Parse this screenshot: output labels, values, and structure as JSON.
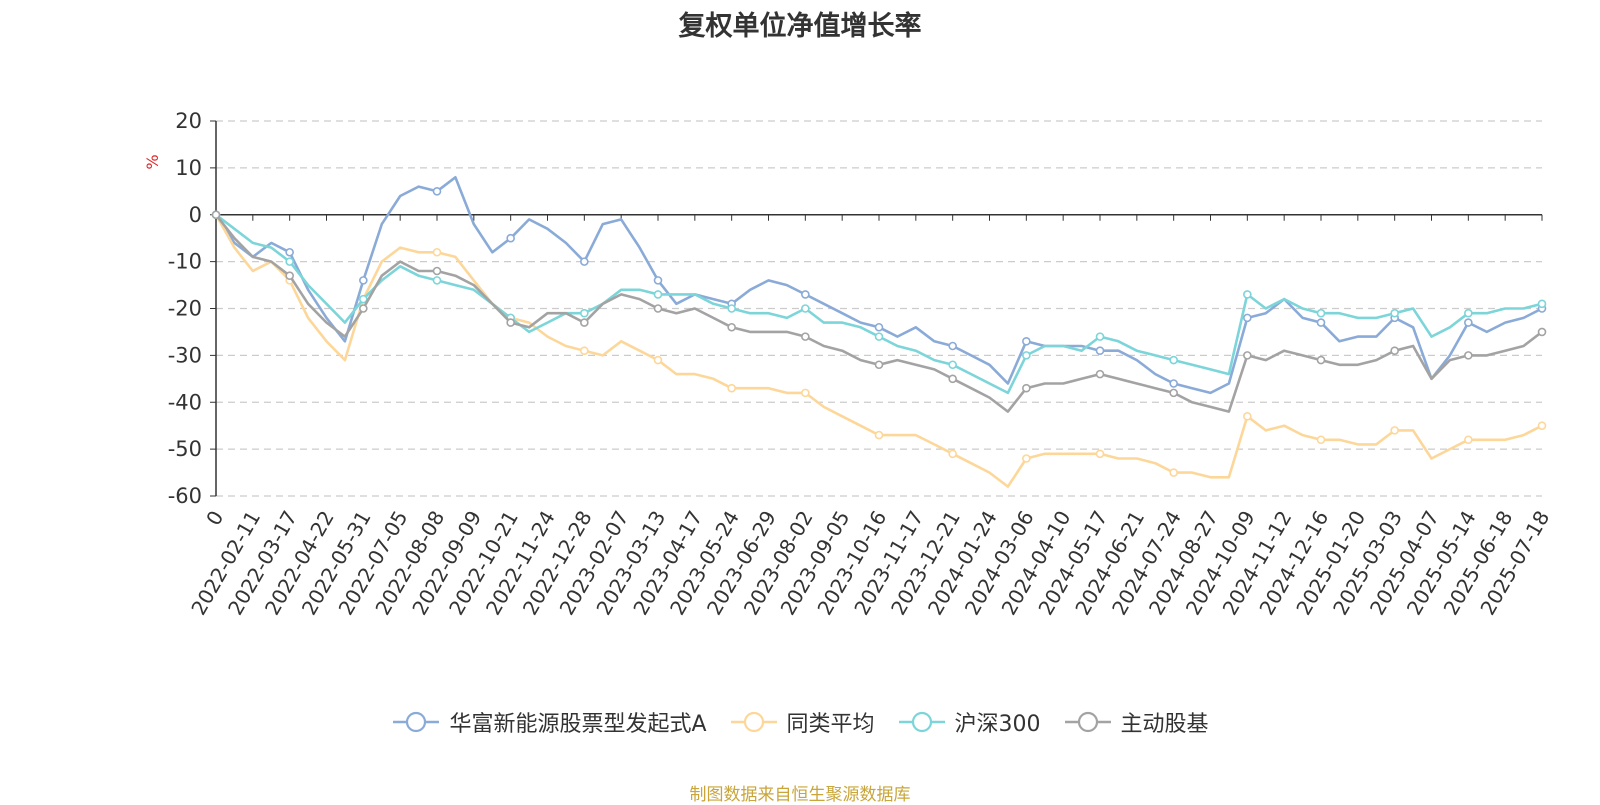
{
  "chart_data": {
    "type": "line",
    "title": "复权单位净值增长率",
    "ylabel": "%",
    "ylim": [
      -60,
      20
    ],
    "yticks": [
      20,
      10,
      0,
      -10,
      -20,
      -30,
      -40,
      -50,
      -60
    ],
    "grid": true,
    "legend_position": "bottom",
    "x_tick_labels": [
      "0",
      "2022-02-11",
      "2022-03-17",
      "2022-04-22",
      "2022-05-31",
      "2022-07-05",
      "2022-08-08",
      "2022-09-09",
      "2022-10-21",
      "2022-11-24",
      "2022-12-28",
      "2023-02-07",
      "2023-03-13",
      "2023-04-17",
      "2023-05-24",
      "2023-06-29",
      "2023-08-02",
      "2023-09-05",
      "2023-10-16",
      "2023-11-17",
      "2023-12-21",
      "2024-01-24",
      "2024-03-06",
      "2024-04-10",
      "2024-05-17",
      "2024-06-21",
      "2024-07-24",
      "2024-08-27",
      "2024-10-09",
      "2024-11-12",
      "2024-12-16",
      "2025-01-20",
      "2025-03-03",
      "2025-04-07",
      "2025-05-14",
      "2025-06-18",
      "2025-07-18"
    ],
    "x": [
      "0",
      "2022-01-28",
      "2022-02-11",
      "2022-02-25",
      "2022-03-17",
      "2022-04-01",
      "2022-04-22",
      "2022-05-06",
      "2022-05-31",
      "2022-06-17",
      "2022-07-05",
      "2022-07-20",
      "2022-08-08",
      "2022-08-24",
      "2022-09-09",
      "2022-09-30",
      "2022-10-21",
      "2022-11-07",
      "2022-11-24",
      "2022-12-12",
      "2022-12-28",
      "2023-01-16",
      "2023-02-07",
      "2023-02-22",
      "2023-03-13",
      "2023-03-30",
      "2023-04-17",
      "2023-05-08",
      "2023-05-24",
      "2023-06-09",
      "2023-06-29",
      "2023-07-17",
      "2023-08-02",
      "2023-08-18",
      "2023-09-05",
      "2023-09-21",
      "2023-10-16",
      "2023-11-01",
      "2023-11-17",
      "2023-12-05",
      "2023-12-21",
      "2024-01-08",
      "2024-01-24",
      "2024-02-07",
      "2024-03-06",
      "2024-03-22",
      "2024-04-10",
      "2024-04-26",
      "2024-05-17",
      "2024-06-04",
      "2024-06-21",
      "2024-07-09",
      "2024-07-24",
      "2024-08-09",
      "2024-08-27",
      "2024-09-20",
      "2024-10-09",
      "2024-10-25",
      "2024-11-12",
      "2024-11-28",
      "2024-12-16",
      "2025-01-02",
      "2025-01-20",
      "2025-02-14",
      "2025-03-03",
      "2025-03-19",
      "2025-04-07",
      "2025-04-25",
      "2025-05-14",
      "2025-05-30",
      "2025-06-18",
      "2025-07-04",
      "2025-07-18"
    ],
    "series": [
      {
        "name": "华富新能源股票型发起式A",
        "color": "#8aaad8",
        "values": [
          0,
          -6,
          -9,
          -6,
          -8,
          -16,
          -22,
          -27,
          -14,
          -2,
          4,
          6,
          5,
          8,
          -2,
          -8,
          -5,
          -1,
          -3,
          -6,
          -10,
          -2,
          -1,
          -7,
          -14,
          -19,
          -17,
          -18,
          -19,
          -16,
          -14,
          -15,
          -17,
          -19,
          -21,
          -23,
          -24,
          -26,
          -24,
          -27,
          -28,
          -30,
          -32,
          -36,
          -27,
          -28,
          -28,
          -28,
          -29,
          -29,
          -31,
          -34,
          -36,
          -37,
          -38,
          -36,
          -22,
          -21,
          -18,
          -22,
          -23,
          -27,
          -26,
          -26,
          -22,
          -24,
          -35,
          -30,
          -23,
          -25,
          -23,
          -22,
          -20
        ]
      },
      {
        "name": "同类平均",
        "color": "#fdd799",
        "values": [
          0,
          -7,
          -12,
          -10,
          -14,
          -22,
          -27,
          -31,
          -18,
          -10,
          -7,
          -8,
          -8,
          -9,
          -14,
          -19,
          -22,
          -23,
          -26,
          -28,
          -29,
          -30,
          -27,
          -29,
          -31,
          -34,
          -34,
          -35,
          -37,
          -37,
          -37,
          -38,
          -38,
          -41,
          -43,
          -45,
          -47,
          -47,
          -47,
          -49,
          -51,
          -53,
          -55,
          -58,
          -52,
          -51,
          -51,
          -51,
          -51,
          -52,
          -52,
          -53,
          -55,
          -55,
          -56,
          -56,
          -43,
          -46,
          -45,
          -47,
          -48,
          -48,
          -49,
          -49,
          -46,
          -46,
          -52,
          -50,
          -48,
          -48,
          -48,
          -47,
          -45
        ]
      },
      {
        "name": "沪深300",
        "color": "#7cd5d9",
        "values": [
          0,
          -3,
          -6,
          -7,
          -10,
          -15,
          -19,
          -23,
          -18,
          -14,
          -11,
          -13,
          -14,
          -15,
          -16,
          -19,
          -22,
          -25,
          -23,
          -21,
          -21,
          -19,
          -16,
          -16,
          -17,
          -17,
          -17,
          -19,
          -20,
          -21,
          -21,
          -22,
          -20,
          -23,
          -23,
          -24,
          -26,
          -28,
          -29,
          -31,
          -32,
          -34,
          -36,
          -38,
          -30,
          -28,
          -28,
          -29,
          -26,
          -27,
          -29,
          -30,
          -31,
          -32,
          -33,
          -34,
          -17,
          -20,
          -18,
          -20,
          -21,
          -21,
          -22,
          -22,
          -21,
          -20,
          -26,
          -24,
          -21,
          -21,
          -20,
          -20,
          -19
        ]
      },
      {
        "name": "主动股基",
        "color": "#a3a3a3",
        "values": [
          0,
          -5,
          -9,
          -10,
          -13,
          -19,
          -23,
          -26,
          -20,
          -13,
          -10,
          -12,
          -12,
          -13,
          -15,
          -19,
          -23,
          -24,
          -21,
          -21,
          -23,
          -19,
          -17,
          -18,
          -20,
          -21,
          -20,
          -22,
          -24,
          -25,
          -25,
          -25,
          -26,
          -28,
          -29,
          -31,
          -32,
          -31,
          -32,
          -33,
          -35,
          -37,
          -39,
          -42,
          -37,
          -36,
          -36,
          -35,
          -34,
          -35,
          -36,
          -37,
          -38,
          -40,
          -41,
          -42,
          -30,
          -31,
          -29,
          -30,
          -31,
          -32,
          -32,
          -31,
          -29,
          -28,
          -35,
          -31,
          -30,
          -30,
          -29,
          -28,
          -25
        ]
      }
    ]
  },
  "source_note": "制图数据来自恒生聚源数据库"
}
